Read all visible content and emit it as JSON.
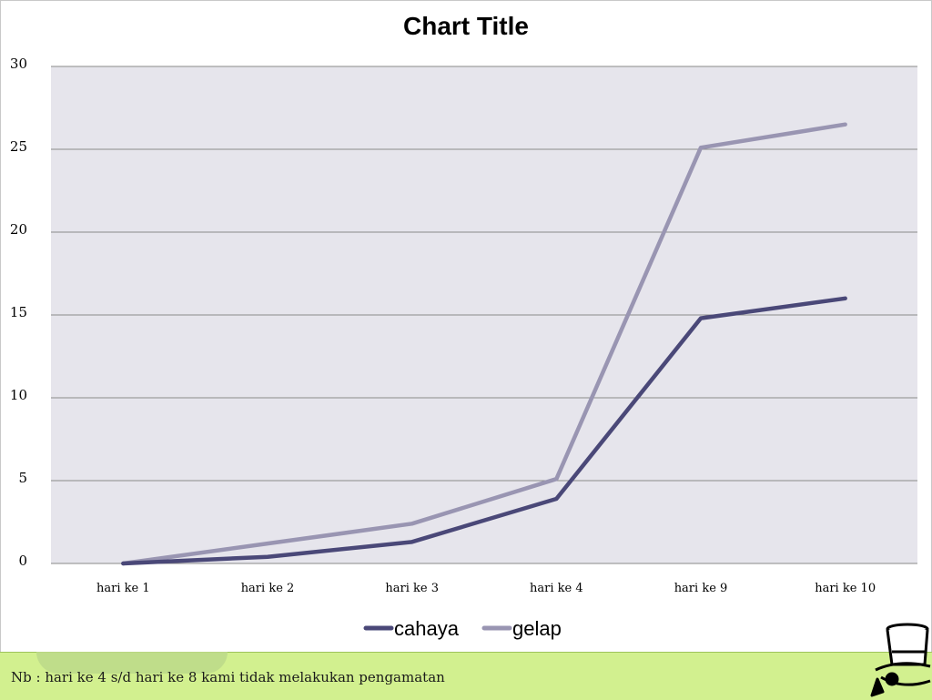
{
  "footer": {
    "note": "Nb : hari ke 4 s/d hari ke 8 kami tidak melakukan pengamatan"
  },
  "mascot": {
    "icon": "top-hat-character-icon"
  },
  "colors": {
    "plot_background": "#e6e5ec",
    "gridline": "#8a8a8a",
    "cahaya": "#4a4878",
    "gelap": "#9995b2",
    "footer_band": "#d2f08f"
  },
  "chart_data": {
    "type": "line",
    "title": "Chart Title",
    "xlabel": "",
    "ylabel": "",
    "categories": [
      "hari ke 1",
      "hari ke 2",
      "hari ke 3",
      "hari ke 4",
      "hari ke 9",
      "hari ke 10"
    ],
    "series": [
      {
        "name": "cahaya",
        "values": [
          0,
          0.4,
          1.3,
          3.9,
          14.8,
          16
        ]
      },
      {
        "name": "gelap",
        "values": [
          0,
          1.2,
          2.4,
          5.1,
          25.1,
          26.5
        ]
      }
    ],
    "ylim": [
      0,
      30
    ],
    "yticks": [
      "0",
      "5",
      "10",
      "15",
      "20",
      "25",
      "30"
    ],
    "grid": true,
    "legend": "bottom"
  }
}
